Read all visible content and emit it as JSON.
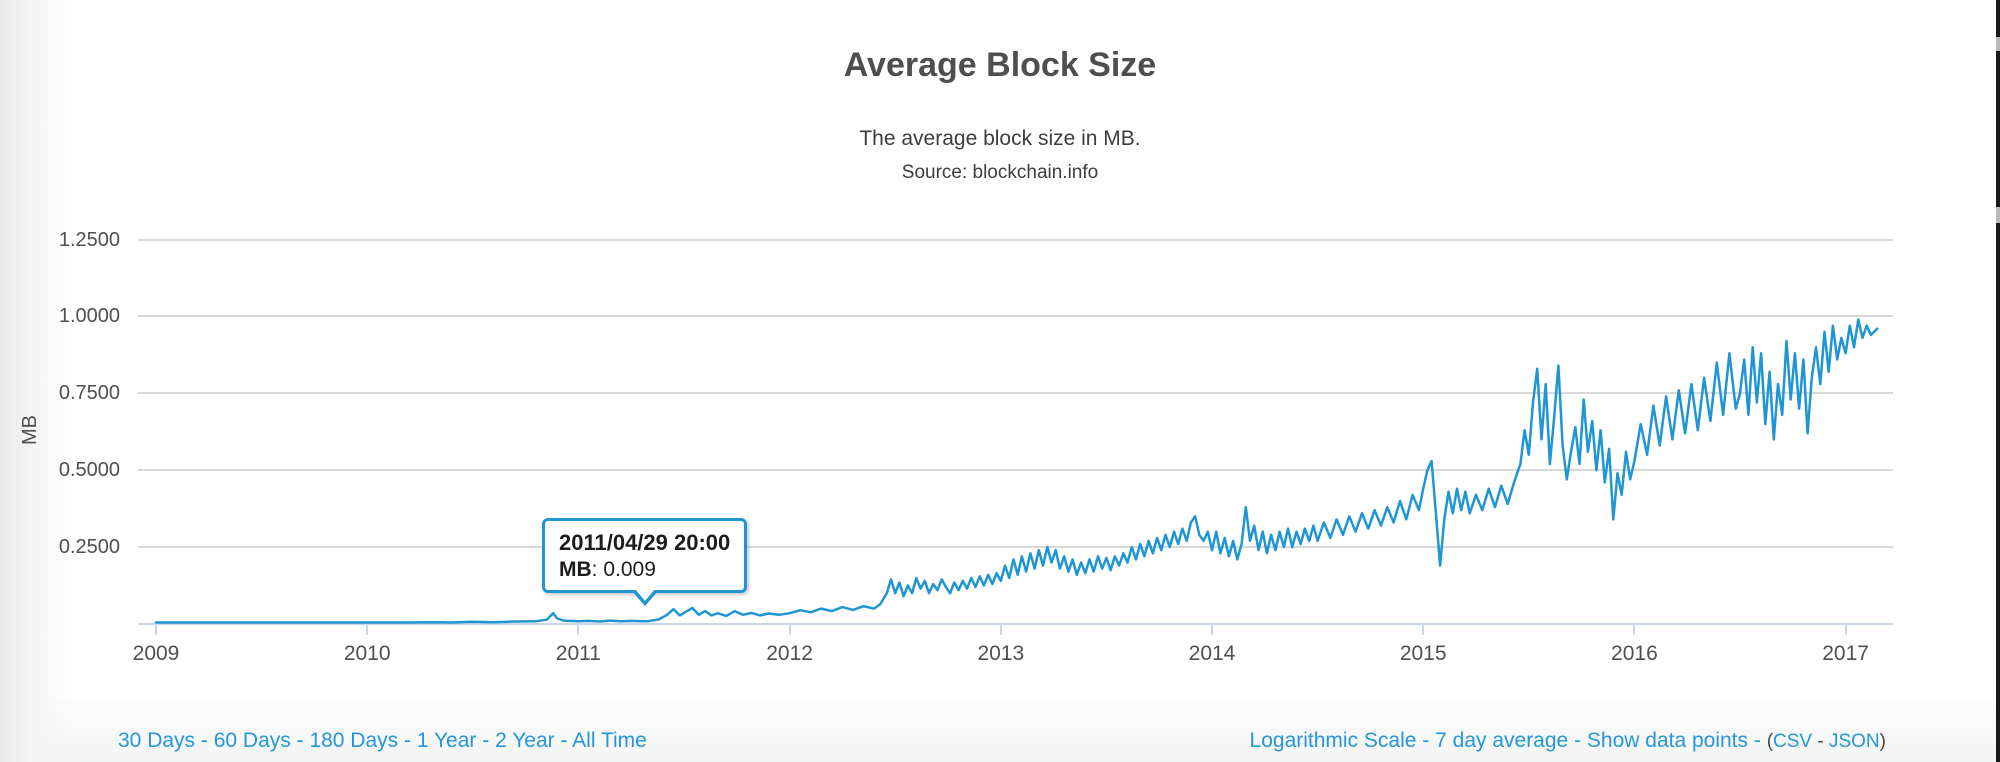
{
  "header": {
    "title": "Average Block Size",
    "subtitle": "The average block size in MB.",
    "source": "Source: blockchain.info"
  },
  "tooltip": {
    "date": "2011/04/29 20:00",
    "label": "MB",
    "value_text": ": 0.009",
    "value": "0.009"
  },
  "footer": {
    "separator": " - ",
    "left_links": [
      "30 Days",
      "60 Days",
      "180 Days",
      "1 Year",
      "2 Year",
      "All Time"
    ],
    "right_links": [
      "Logarithmic Scale",
      "7 day average",
      "Show data points"
    ],
    "export_open": "(",
    "export_links": [
      "CSV",
      "JSON"
    ],
    "export_close": ")"
  },
  "colors": {
    "line": "#2095d3",
    "link": "#2596d8",
    "grid": "#d9d9d9",
    "axis": "#ccd6eb"
  },
  "chart_data": {
    "type": "line",
    "title": "Average Block Size",
    "subtitle": "The average block size in MB.",
    "xlabel": "",
    "ylabel": "MB",
    "legend": "none",
    "grid": "horizontal-only",
    "xlim": [
      2008.9,
      2017.25
    ],
    "ylim": [
      0,
      1.45
    ],
    "x_ticks": [
      2009,
      2010,
      2011,
      2012,
      2013,
      2014,
      2015,
      2016,
      2017
    ],
    "y_ticks": [
      {
        "label": "0.2500",
        "value": 0.25
      },
      {
        "label": "0.5000",
        "value": 0.5
      },
      {
        "label": "0.7500",
        "value": 0.75
      },
      {
        "label": "1.0000",
        "value": 1.0
      },
      {
        "label": "1.2500",
        "value": 1.25
      }
    ],
    "highlighted_point": {
      "x": 2011.33,
      "y": 0.009,
      "date": "2011/04/29 20:00"
    },
    "points": [
      [
        2009,
        0.002
      ],
      [
        2009.1,
        0.0015
      ],
      [
        2009.2,
        0.002
      ],
      [
        2009.3,
        0.002
      ],
      [
        2009.4,
        0.0025
      ],
      [
        2009.5,
        0.002
      ],
      [
        2009.6,
        0.003
      ],
      [
        2009.7,
        0.0025
      ],
      [
        2009.8,
        0.003
      ],
      [
        2009.9,
        0.003
      ],
      [
        2010,
        0.004
      ],
      [
        2010.1,
        0.005
      ],
      [
        2010.2,
        0.004
      ],
      [
        2010.3,
        0.006
      ],
      [
        2010.4,
        0.005
      ],
      [
        2010.5,
        0.007
      ],
      [
        2010.6,
        0.006
      ],
      [
        2010.7,
        0.008
      ],
      [
        2010.8,
        0.009
      ],
      [
        2010.85,
        0.014
      ],
      [
        2010.88,
        0.035
      ],
      [
        2010.9,
        0.018
      ],
      [
        2010.93,
        0.011
      ],
      [
        2011,
        0.009
      ],
      [
        2011.05,
        0.01
      ],
      [
        2011.1,
        0.008
      ],
      [
        2011.15,
        0.011
      ],
      [
        2011.2,
        0.009
      ],
      [
        2011.25,
        0.01
      ],
      [
        2011.3,
        0.009
      ],
      [
        2011.33,
        0.009
      ],
      [
        2011.38,
        0.015
      ],
      [
        2011.42,
        0.03
      ],
      [
        2011.45,
        0.048
      ],
      [
        2011.48,
        0.028
      ],
      [
        2011.51,
        0.04
      ],
      [
        2011.54,
        0.052
      ],
      [
        2011.57,
        0.03
      ],
      [
        2011.6,
        0.042
      ],
      [
        2011.63,
        0.028
      ],
      [
        2011.66,
        0.035
      ],
      [
        2011.7,
        0.026
      ],
      [
        2011.74,
        0.042
      ],
      [
        2011.78,
        0.03
      ],
      [
        2011.82,
        0.036
      ],
      [
        2011.86,
        0.028
      ],
      [
        2011.9,
        0.034
      ],
      [
        2011.95,
        0.03
      ],
      [
        2012,
        0.035
      ],
      [
        2012.05,
        0.045
      ],
      [
        2012.1,
        0.038
      ],
      [
        2012.15,
        0.05
      ],
      [
        2012.2,
        0.042
      ],
      [
        2012.25,
        0.055
      ],
      [
        2012.3,
        0.046
      ],
      [
        2012.35,
        0.058
      ],
      [
        2012.4,
        0.05
      ],
      [
        2012.43,
        0.065
      ],
      [
        2012.46,
        0.1
      ],
      [
        2012.48,
        0.145
      ],
      [
        2012.5,
        0.1
      ],
      [
        2012.52,
        0.135
      ],
      [
        2012.54,
        0.09
      ],
      [
        2012.56,
        0.125
      ],
      [
        2012.58,
        0.1
      ],
      [
        2012.6,
        0.15
      ],
      [
        2012.62,
        0.115
      ],
      [
        2012.64,
        0.14
      ],
      [
        2012.66,
        0.1
      ],
      [
        2012.68,
        0.13
      ],
      [
        2012.7,
        0.11
      ],
      [
        2012.72,
        0.145
      ],
      [
        2012.74,
        0.12
      ],
      [
        2012.76,
        0.1
      ],
      [
        2012.78,
        0.135
      ],
      [
        2012.8,
        0.11
      ],
      [
        2012.82,
        0.14
      ],
      [
        2012.84,
        0.115
      ],
      [
        2012.86,
        0.15
      ],
      [
        2012.88,
        0.12
      ],
      [
        2012.9,
        0.155
      ],
      [
        2012.92,
        0.125
      ],
      [
        2012.94,
        0.16
      ],
      [
        2012.96,
        0.13
      ],
      [
        2012.98,
        0.165
      ],
      [
        2013,
        0.14
      ],
      [
        2013.02,
        0.19
      ],
      [
        2013.04,
        0.15
      ],
      [
        2013.06,
        0.21
      ],
      [
        2013.08,
        0.16
      ],
      [
        2013.1,
        0.22
      ],
      [
        2013.12,
        0.17
      ],
      [
        2013.14,
        0.23
      ],
      [
        2013.16,
        0.18
      ],
      [
        2013.18,
        0.24
      ],
      [
        2013.2,
        0.19
      ],
      [
        2013.22,
        0.25
      ],
      [
        2013.24,
        0.2
      ],
      [
        2013.26,
        0.24
      ],
      [
        2013.28,
        0.18
      ],
      [
        2013.3,
        0.22
      ],
      [
        2013.32,
        0.17
      ],
      [
        2013.34,
        0.21
      ],
      [
        2013.36,
        0.16
      ],
      [
        2013.38,
        0.2
      ],
      [
        2013.4,
        0.165
      ],
      [
        2013.42,
        0.21
      ],
      [
        2013.44,
        0.17
      ],
      [
        2013.46,
        0.22
      ],
      [
        2013.48,
        0.18
      ],
      [
        2013.5,
        0.215
      ],
      [
        2013.52,
        0.175
      ],
      [
        2013.54,
        0.22
      ],
      [
        2013.56,
        0.19
      ],
      [
        2013.58,
        0.23
      ],
      [
        2013.6,
        0.2
      ],
      [
        2013.62,
        0.25
      ],
      [
        2013.64,
        0.21
      ],
      [
        2013.66,
        0.26
      ],
      [
        2013.68,
        0.22
      ],
      [
        2013.7,
        0.27
      ],
      [
        2013.72,
        0.23
      ],
      [
        2013.74,
        0.28
      ],
      [
        2013.76,
        0.24
      ],
      [
        2013.78,
        0.29
      ],
      [
        2013.8,
        0.25
      ],
      [
        2013.82,
        0.3
      ],
      [
        2013.84,
        0.26
      ],
      [
        2013.86,
        0.31
      ],
      [
        2013.88,
        0.27
      ],
      [
        2013.9,
        0.33
      ],
      [
        2013.92,
        0.35
      ],
      [
        2013.94,
        0.29
      ],
      [
        2013.96,
        0.27
      ],
      [
        2013.98,
        0.3
      ],
      [
        2014,
        0.24
      ],
      [
        2014.02,
        0.3
      ],
      [
        2014.04,
        0.23
      ],
      [
        2014.06,
        0.28
      ],
      [
        2014.08,
        0.22
      ],
      [
        2014.1,
        0.27
      ],
      [
        2014.12,
        0.21
      ],
      [
        2014.14,
        0.26
      ],
      [
        2014.16,
        0.38
      ],
      [
        2014.18,
        0.27
      ],
      [
        2014.2,
        0.32
      ],
      [
        2014.22,
        0.24
      ],
      [
        2014.24,
        0.3
      ],
      [
        2014.26,
        0.23
      ],
      [
        2014.28,
        0.29
      ],
      [
        2014.3,
        0.24
      ],
      [
        2014.32,
        0.3
      ],
      [
        2014.34,
        0.25
      ],
      [
        2014.36,
        0.31
      ],
      [
        2014.38,
        0.25
      ],
      [
        2014.4,
        0.3
      ],
      [
        2014.42,
        0.26
      ],
      [
        2014.44,
        0.31
      ],
      [
        2014.46,
        0.27
      ],
      [
        2014.48,
        0.32
      ],
      [
        2014.5,
        0.27
      ],
      [
        2014.53,
        0.33
      ],
      [
        2014.56,
        0.28
      ],
      [
        2014.59,
        0.34
      ],
      [
        2014.62,
        0.29
      ],
      [
        2014.65,
        0.35
      ],
      [
        2014.68,
        0.3
      ],
      [
        2014.71,
        0.36
      ],
      [
        2014.74,
        0.31
      ],
      [
        2014.77,
        0.37
      ],
      [
        2014.8,
        0.32
      ],
      [
        2014.83,
        0.38
      ],
      [
        2014.86,
        0.33
      ],
      [
        2014.89,
        0.4
      ],
      [
        2014.92,
        0.34
      ],
      [
        2014.95,
        0.42
      ],
      [
        2014.98,
        0.37
      ],
      [
        2015,
        0.44
      ],
      [
        2015.02,
        0.5
      ],
      [
        2015.04,
        0.53
      ],
      [
        2015.06,
        0.36
      ],
      [
        2015.08,
        0.19
      ],
      [
        2015.1,
        0.34
      ],
      [
        2015.12,
        0.43
      ],
      [
        2015.14,
        0.36
      ],
      [
        2015.16,
        0.44
      ],
      [
        2015.18,
        0.37
      ],
      [
        2015.2,
        0.43
      ],
      [
        2015.22,
        0.36
      ],
      [
        2015.25,
        0.42
      ],
      [
        2015.28,
        0.37
      ],
      [
        2015.31,
        0.44
      ],
      [
        2015.34,
        0.38
      ],
      [
        2015.37,
        0.45
      ],
      [
        2015.4,
        0.39
      ],
      [
        2015.43,
        0.46
      ],
      [
        2015.46,
        0.52
      ],
      [
        2015.48,
        0.63
      ],
      [
        2015.5,
        0.55
      ],
      [
        2015.52,
        0.72
      ],
      [
        2015.54,
        0.83
      ],
      [
        2015.56,
        0.6
      ],
      [
        2015.58,
        0.78
      ],
      [
        2015.6,
        0.52
      ],
      [
        2015.62,
        0.67
      ],
      [
        2015.64,
        0.84
      ],
      [
        2015.66,
        0.58
      ],
      [
        2015.68,
        0.47
      ],
      [
        2015.7,
        0.56
      ],
      [
        2015.72,
        0.64
      ],
      [
        2015.74,
        0.52
      ],
      [
        2015.76,
        0.73
      ],
      [
        2015.78,
        0.56
      ],
      [
        2015.8,
        0.66
      ],
      [
        2015.82,
        0.5
      ],
      [
        2015.84,
        0.63
      ],
      [
        2015.86,
        0.46
      ],
      [
        2015.88,
        0.57
      ],
      [
        2015.9,
        0.34
      ],
      [
        2015.92,
        0.49
      ],
      [
        2015.94,
        0.42
      ],
      [
        2015.96,
        0.56
      ],
      [
        2015.98,
        0.47
      ],
      [
        2016,
        0.53
      ],
      [
        2016.03,
        0.65
      ],
      [
        2016.06,
        0.55
      ],
      [
        2016.09,
        0.71
      ],
      [
        2016.12,
        0.58
      ],
      [
        2016.15,
        0.74
      ],
      [
        2016.18,
        0.6
      ],
      [
        2016.21,
        0.76
      ],
      [
        2016.24,
        0.62
      ],
      [
        2016.27,
        0.78
      ],
      [
        2016.3,
        0.63
      ],
      [
        2016.33,
        0.8
      ],
      [
        2016.36,
        0.66
      ],
      [
        2016.39,
        0.85
      ],
      [
        2016.42,
        0.68
      ],
      [
        2016.45,
        0.88
      ],
      [
        2016.48,
        0.7
      ],
      [
        2016.5,
        0.75
      ],
      [
        2016.52,
        0.86
      ],
      [
        2016.54,
        0.68
      ],
      [
        2016.56,
        0.9
      ],
      [
        2016.58,
        0.72
      ],
      [
        2016.6,
        0.88
      ],
      [
        2016.62,
        0.65
      ],
      [
        2016.64,
        0.82
      ],
      [
        2016.66,
        0.6
      ],
      [
        2016.68,
        0.78
      ],
      [
        2016.7,
        0.68
      ],
      [
        2016.72,
        0.92
      ],
      [
        2016.74,
        0.73
      ],
      [
        2016.76,
        0.88
      ],
      [
        2016.78,
        0.7
      ],
      [
        2016.8,
        0.86
      ],
      [
        2016.82,
        0.62
      ],
      [
        2016.84,
        0.8
      ],
      [
        2016.86,
        0.9
      ],
      [
        2016.88,
        0.78
      ],
      [
        2016.9,
        0.95
      ],
      [
        2016.92,
        0.82
      ],
      [
        2016.94,
        0.97
      ],
      [
        2016.96,
        0.86
      ],
      [
        2016.98,
        0.93
      ],
      [
        2017,
        0.88
      ],
      [
        2017.02,
        0.97
      ],
      [
        2017.04,
        0.9
      ],
      [
        2017.06,
        0.99
      ],
      [
        2017.08,
        0.93
      ],
      [
        2017.1,
        0.97
      ],
      [
        2017.12,
        0.94
      ],
      [
        2017.15,
        0.96
      ]
    ]
  }
}
